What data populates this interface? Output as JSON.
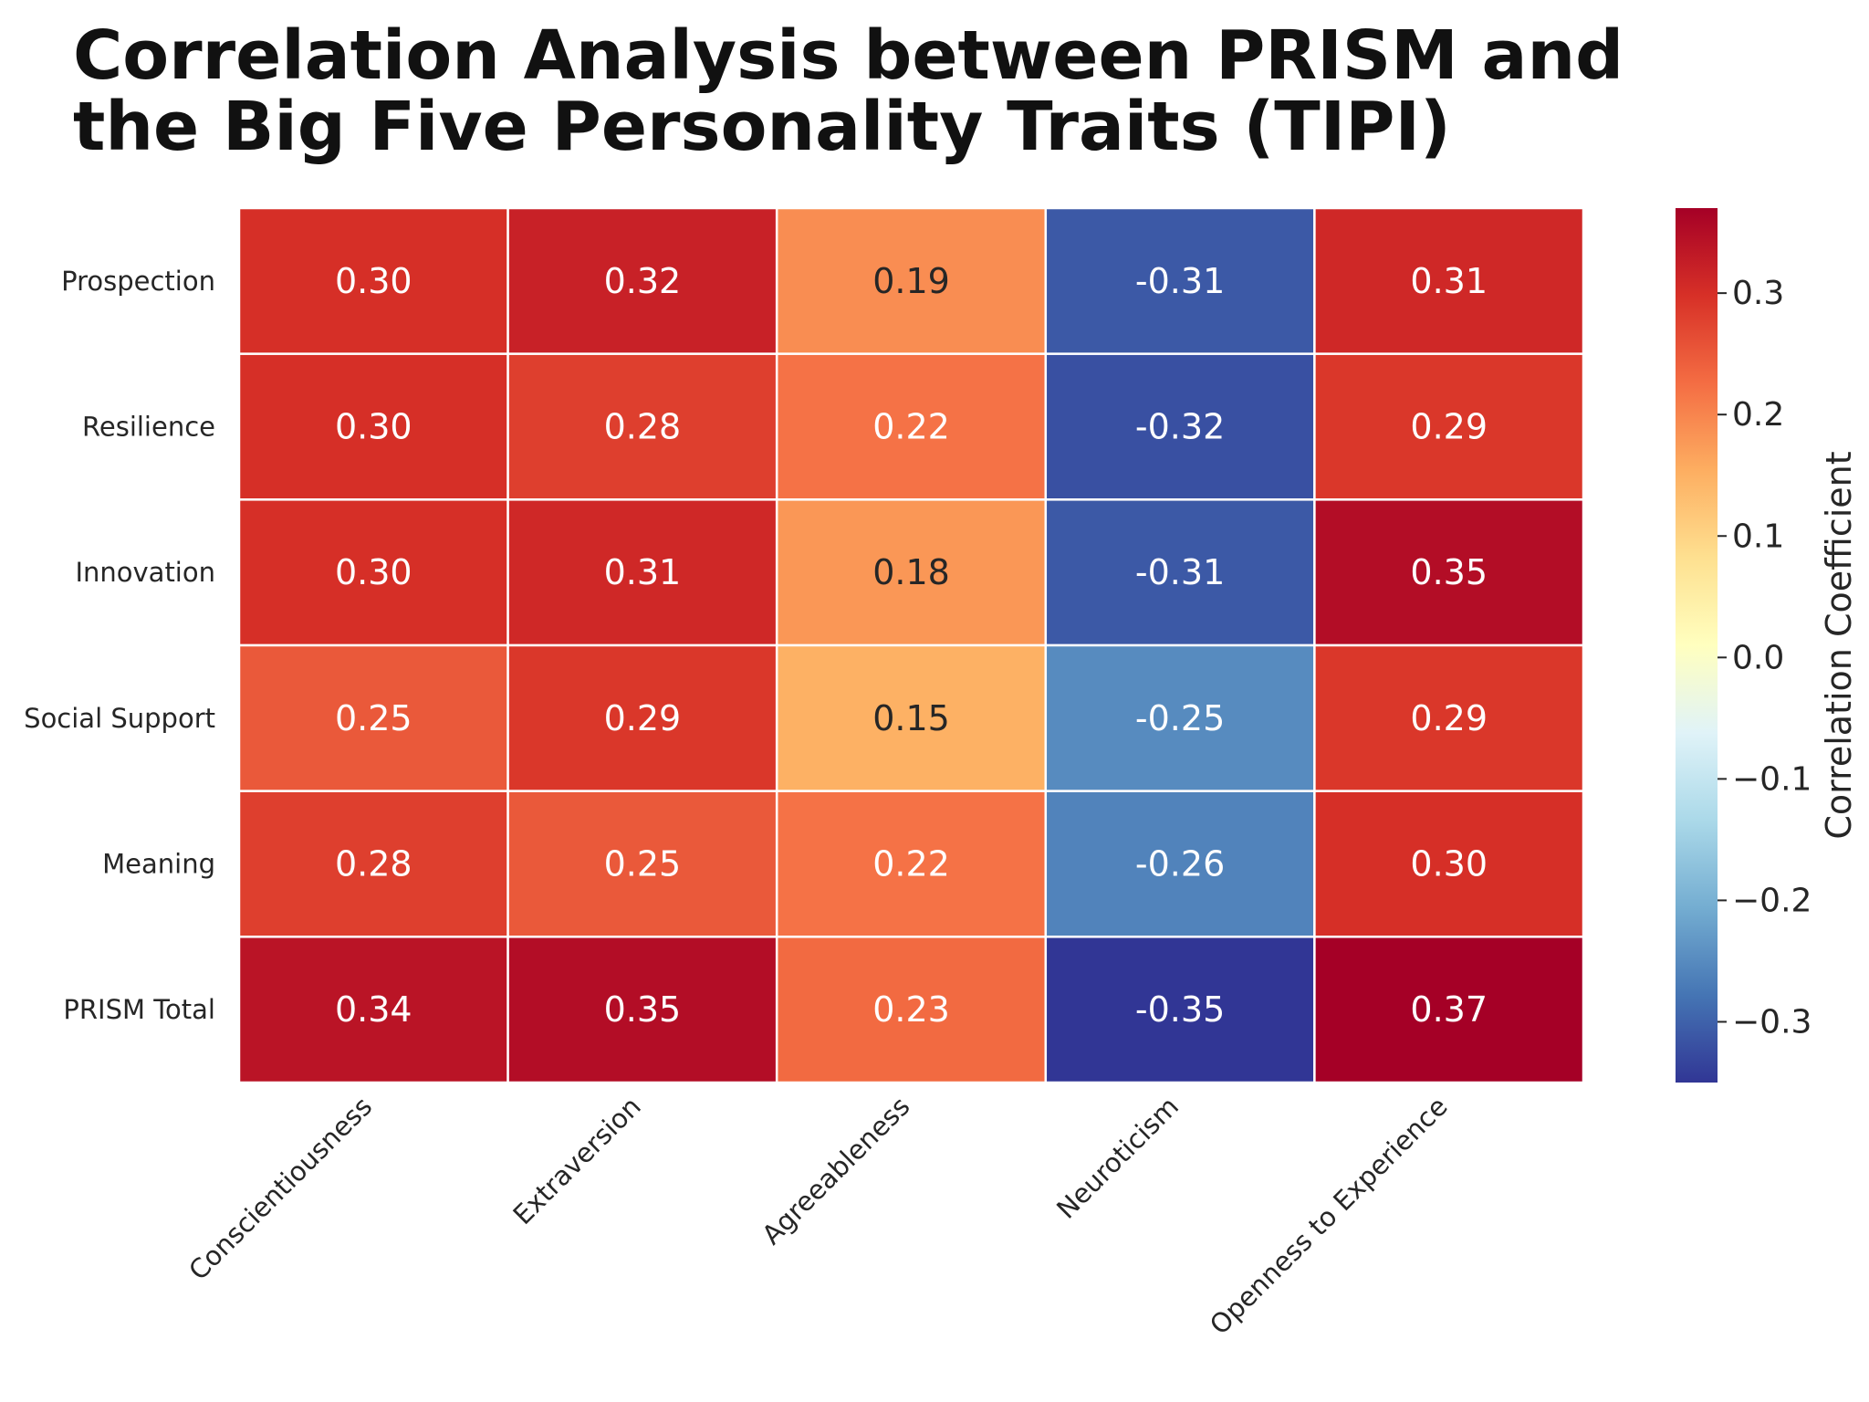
{
  "chart_data": {
    "type": "heatmap",
    "title": "Correlation Analysis between PRISM and the Big Five Personality Traits (TIPI)",
    "rows": [
      "Prospection",
      "Resilience",
      "Innovation",
      "Social Support",
      "Meaning",
      "PRISM Total"
    ],
    "columns": [
      "Conscientiousness",
      "Extraversion",
      "Agreeableness",
      "Neuroticism",
      "Openness to Experience"
    ],
    "values": [
      [
        0.3,
        0.32,
        0.19,
        -0.31,
        0.31
      ],
      [
        0.3,
        0.28,
        0.22,
        -0.32,
        0.29
      ],
      [
        0.3,
        0.31,
        0.18,
        -0.31,
        0.35
      ],
      [
        0.25,
        0.29,
        0.15,
        -0.25,
        0.29
      ],
      [
        0.28,
        0.25,
        0.22,
        -0.26,
        0.3
      ],
      [
        0.34,
        0.35,
        0.23,
        -0.35,
        0.37
      ]
    ],
    "value_format": "2 decimals",
    "colorbar": {
      "label": "Correlation Coefficient",
      "colormap": "RdYlBu_r",
      "range": [
        -0.35,
        0.37
      ],
      "ticks": [
        0.3,
        0.2,
        0.1,
        0.0,
        -0.1,
        -0.2,
        -0.3
      ],
      "tick_labels": [
        "0.3",
        "0.2",
        "0.1",
        "0.0",
        "−0.1",
        "−0.2",
        "−0.3"
      ]
    },
    "colormap_stops": [
      "#313695",
      "#4575b4",
      "#74add1",
      "#abd9e9",
      "#e0f3f8",
      "#ffffbf",
      "#fee090",
      "#fdae61",
      "#f46d43",
      "#d73027",
      "#a50026"
    ],
    "annotation_colors": {
      "light": "#ffffff",
      "dark": "#262626"
    },
    "grid_line_color": "#ffffff"
  }
}
